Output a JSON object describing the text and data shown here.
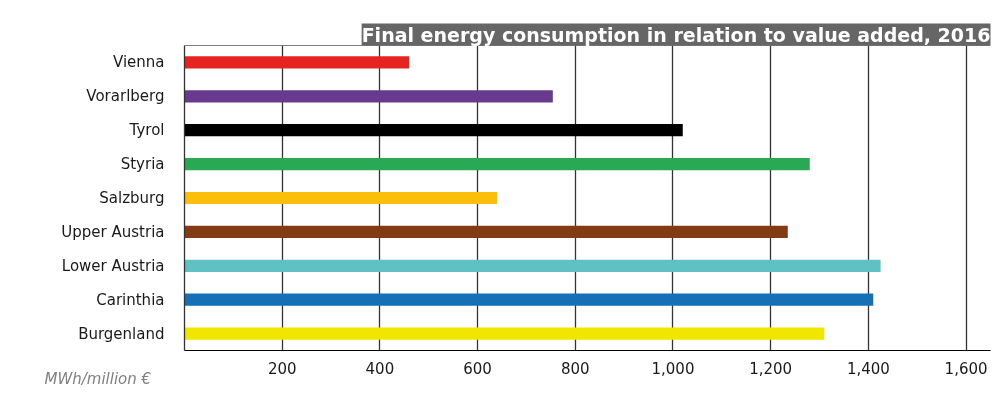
{
  "chart_data": {
    "type": "bar",
    "orientation": "horizontal",
    "title": "Final energy consumption in relation to value added, 2016",
    "xlabel": "MWh/million €",
    "categories": [
      "Vienna",
      "Vorarlberg",
      "Tyrol",
      "Styria",
      "Salzburg",
      "Upper Austria",
      "Lower Austria",
      "Carinthia",
      "Burgenland"
    ],
    "values": [
      460,
      754,
      1020,
      1280,
      640,
      1235,
      1425,
      1410,
      1310
    ],
    "colors": [
      "#e52421",
      "#673a8d",
      "#000000",
      "#2aa955",
      "#fbbf0b",
      "#833b13",
      "#5fc1c3",
      "#1570b7",
      "#f1e600"
    ],
    "xlim": [
      0,
      1650
    ],
    "xticks": [
      {
        "value": 200,
        "label": "200"
      },
      {
        "value": 400,
        "label": "400"
      },
      {
        "value": 600,
        "label": "600"
      },
      {
        "value": 800,
        "label": "800"
      },
      {
        "value": 1000,
        "label": "1,000"
      },
      {
        "value": 1200,
        "label": "1,200"
      },
      {
        "value": 1400,
        "label": "1,400"
      },
      {
        "value": 1600,
        "label": "1,600"
      }
    ],
    "grid": "x"
  }
}
